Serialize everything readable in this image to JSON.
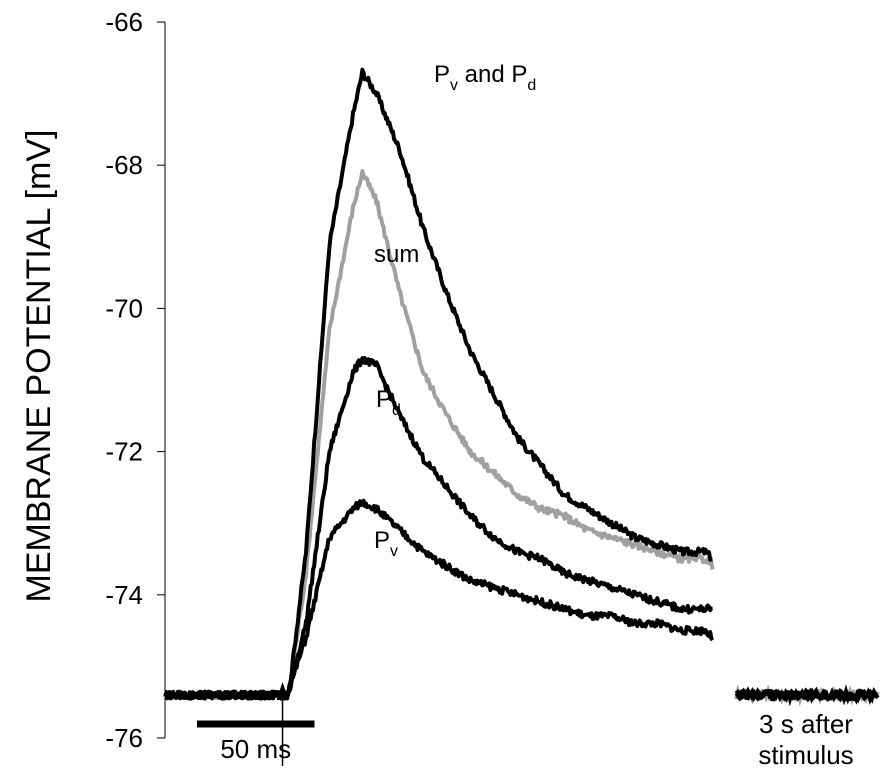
{
  "chart_data": {
    "type": "line",
    "ylabel": "MEMBRANE POTENTIAL [mV]",
    "ylim": [
      -76,
      -66
    ],
    "yticks": [
      -66,
      -68,
      -70,
      -72,
      -74,
      -76
    ],
    "yticks_text": [
      "-66",
      "-68",
      "-70",
      "-72",
      "-74",
      "-76"
    ],
    "x_unit": "ms",
    "xlim": [
      0,
      243
    ],
    "stimulus_ms": 53,
    "scale_bar": {
      "length_ms": 50,
      "label": "50 ms"
    },
    "after_label": "3 s after stimulus",
    "after_label_lines": [
      "3 s after",
      "stimulus"
    ],
    "series": [
      {
        "name": "Pv and Pd",
        "label_main": "P",
        "label_sub1": "v",
        "label_mid": " and P",
        "label_sub2": "d",
        "color": "#000000",
        "x": [
          0,
          52,
          53,
          60,
          70,
          80,
          84,
          90,
          100,
          110,
          120,
          130,
          140,
          150,
          160,
          170,
          180,
          190,
          200,
          210,
          220,
          230,
          233
        ],
        "y": [
          -75.4,
          -75.4,
          -75.3,
          -73.4,
          -69.1,
          -67.3,
          -66.7,
          -67.0,
          -67.8,
          -68.9,
          -69.8,
          -70.6,
          -71.2,
          -71.8,
          -72.2,
          -72.6,
          -72.8,
          -73.0,
          -73.2,
          -73.3,
          -73.4,
          -73.4,
          -73.5
        ],
        "after_y": -75.4
      },
      {
        "name": "sum",
        "label_main": "sum",
        "color": "#a0a0a0",
        "x": [
          0,
          52,
          53,
          60,
          70,
          80,
          84,
          90,
          100,
          110,
          120,
          130,
          140,
          150,
          160,
          170,
          180,
          190,
          200,
          210,
          220,
          230,
          233
        ],
        "y": [
          -75.4,
          -75.4,
          -75.3,
          -73.7,
          -70.3,
          -68.6,
          -68.1,
          -68.5,
          -69.8,
          -70.9,
          -71.5,
          -72.0,
          -72.3,
          -72.6,
          -72.8,
          -72.9,
          -73.1,
          -73.2,
          -73.3,
          -73.4,
          -73.5,
          -73.5,
          -73.6
        ],
        "after_y": -75.4
      },
      {
        "name": "Pd",
        "label_main": "P",
        "label_sub1": "d",
        "color": "#000000",
        "x": [
          0,
          52,
          53,
          60,
          70,
          80,
          84,
          90,
          100,
          110,
          120,
          130,
          140,
          150,
          160,
          170,
          180,
          190,
          200,
          210,
          220,
          230,
          233
        ],
        "y": [
          -75.4,
          -75.4,
          -75.3,
          -74.4,
          -72.0,
          -70.9,
          -70.7,
          -70.8,
          -71.5,
          -72.1,
          -72.5,
          -72.9,
          -73.2,
          -73.4,
          -73.5,
          -73.7,
          -73.8,
          -73.9,
          -74.0,
          -74.1,
          -74.2,
          -74.2,
          -74.2
        ],
        "after_y": -75.4
      },
      {
        "name": "Pv",
        "label_main": "P",
        "label_sub1": "v",
        "color": "#000000",
        "x": [
          0,
          52,
          53,
          60,
          70,
          80,
          84,
          90,
          100,
          110,
          120,
          130,
          140,
          150,
          160,
          170,
          180,
          190,
          200,
          210,
          220,
          230,
          233
        ],
        "y": [
          -75.4,
          -75.4,
          -75.3,
          -74.6,
          -73.2,
          -72.8,
          -72.7,
          -72.8,
          -73.1,
          -73.4,
          -73.6,
          -73.8,
          -73.9,
          -74.0,
          -74.1,
          -74.2,
          -74.3,
          -74.3,
          -74.4,
          -74.4,
          -74.5,
          -74.5,
          -74.6
        ],
        "after_y": -75.4
      }
    ]
  }
}
